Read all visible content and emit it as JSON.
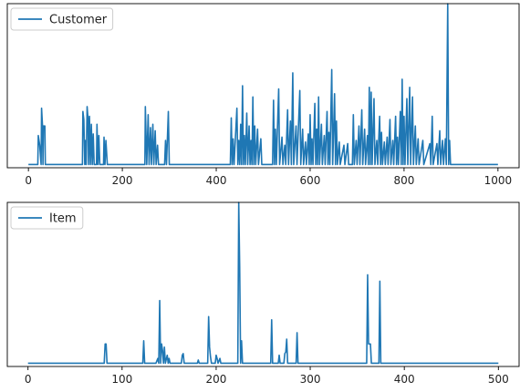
{
  "chart_data": [
    {
      "type": "line",
      "title": "",
      "xlabel": "",
      "ylabel": "",
      "xlim": [
        -45,
        1045
      ],
      "ylim": [
        -2,
        100
      ],
      "x_ticks": [
        0,
        200,
        400,
        600,
        800,
        1000
      ],
      "x_tick_labels": [
        "0",
        "200",
        "400",
        "600",
        "800",
        "1000"
      ],
      "y_ticks_visible": false,
      "grid": false,
      "legend": {
        "placement": "top-left",
        "entries": [
          "Customer"
        ]
      },
      "series": [
        {
          "name": "Customer",
          "color": "#1f77b4",
          "points": [
            [
              0,
              0
            ],
            [
              20,
              0
            ],
            [
              21,
              18
            ],
            [
              24,
              12
            ],
            [
              27,
              0
            ],
            [
              28,
              35
            ],
            [
              30,
              24
            ],
            [
              31,
              0
            ],
            [
              32,
              24
            ],
            [
              35,
              24
            ],
            [
              36,
              0
            ],
            [
              115,
              0
            ],
            [
              116,
              33
            ],
            [
              118,
              28
            ],
            [
              120,
              0
            ],
            [
              121,
              15
            ],
            [
              123,
              0
            ],
            [
              125,
              36
            ],
            [
              127,
              28
            ],
            [
              128,
              0
            ],
            [
              130,
              30
            ],
            [
              132,
              0
            ],
            [
              134,
              25
            ],
            [
              136,
              0
            ],
            [
              138,
              19
            ],
            [
              140,
              0
            ],
            [
              145,
              0
            ],
            [
              146,
              25
            ],
            [
              148,
              0
            ],
            [
              150,
              18
            ],
            [
              152,
              0
            ],
            [
              160,
              0
            ],
            [
              161,
              17
            ],
            [
              163,
              0
            ],
            [
              165,
              15
            ],
            [
              168,
              0
            ],
            [
              248,
              0
            ],
            [
              249,
              36
            ],
            [
              252,
              0
            ],
            [
              255,
              31
            ],
            [
              257,
              0
            ],
            [
              260,
              23
            ],
            [
              262,
              0
            ],
            [
              265,
              25
            ],
            [
              267,
              0
            ],
            [
              270,
              21
            ],
            [
              272,
              0
            ],
            [
              275,
              12
            ],
            [
              277,
              0
            ],
            [
              290,
              0
            ],
            [
              292,
              15
            ],
            [
              294,
              0
            ],
            [
              298,
              33
            ],
            [
              300,
              0
            ],
            [
              430,
              0
            ],
            [
              432,
              29
            ],
            [
              434,
              0
            ],
            [
              436,
              16
            ],
            [
              438,
              0
            ],
            [
              444,
              35
            ],
            [
              446,
              0
            ],
            [
              448,
              15
            ],
            [
              450,
              0
            ],
            [
              452,
              25
            ],
            [
              454,
              0
            ],
            [
              456,
              49
            ],
            [
              458,
              0
            ],
            [
              460,
              18
            ],
            [
              462,
              0
            ],
            [
              465,
              32
            ],
            [
              467,
              0
            ],
            [
              470,
              24
            ],
            [
              472,
              0
            ],
            [
              474,
              15
            ],
            [
              476,
              0
            ],
            [
              478,
              42
            ],
            [
              480,
              0
            ],
            [
              482,
              24
            ],
            [
              484,
              0
            ],
            [
              488,
              22
            ],
            [
              490,
              0
            ],
            [
              495,
              16
            ],
            [
              497,
              0
            ],
            [
              520,
              0
            ],
            [
              522,
              40
            ],
            [
              524,
              0
            ],
            [
              526,
              22
            ],
            [
              528,
              0
            ],
            [
              533,
              47
            ],
            [
              535,
              0
            ],
            [
              540,
              17
            ],
            [
              542,
              0
            ],
            [
              546,
              12
            ],
            [
              548,
              0
            ],
            [
              552,
              34
            ],
            [
              554,
              0
            ],
            [
              558,
              27
            ],
            [
              560,
              0
            ],
            [
              563,
              57
            ],
            [
              565,
              0
            ],
            [
              570,
              24
            ],
            [
              572,
              0
            ],
            [
              578,
              46
            ],
            [
              580,
              0
            ],
            [
              584,
              22
            ],
            [
              586,
              0
            ],
            [
              590,
              14
            ],
            [
              592,
              0
            ],
            [
              596,
              19
            ],
            [
              598,
              0
            ],
            [
              600,
              31
            ],
            [
              602,
              0
            ],
            [
              604,
              16
            ],
            [
              606,
              0
            ],
            [
              610,
              38
            ],
            [
              612,
              0
            ],
            [
              614,
              22
            ],
            [
              616,
              0
            ],
            [
              618,
              42
            ],
            [
              620,
              0
            ],
            [
              624,
              25
            ],
            [
              626,
              0
            ],
            [
              630,
              18
            ],
            [
              632,
              0
            ],
            [
              636,
              33
            ],
            [
              638,
              0
            ],
            [
              640,
              20
            ],
            [
              642,
              0
            ],
            [
              646,
              59
            ],
            [
              648,
              0
            ],
            [
              652,
              44
            ],
            [
              654,
              0
            ],
            [
              656,
              27
            ],
            [
              658,
              0
            ],
            [
              662,
              14
            ],
            [
              664,
              0
            ],
            [
              672,
              12
            ],
            [
              674,
              0
            ],
            [
              680,
              13
            ],
            [
              682,
              0
            ],
            [
              690,
              0
            ],
            [
              692,
              31
            ],
            [
              694,
              0
            ],
            [
              698,
              15
            ],
            [
              700,
              0
            ],
            [
              704,
              24
            ],
            [
              706,
              0
            ],
            [
              710,
              34
            ],
            [
              712,
              0
            ],
            [
              716,
              22
            ],
            [
              718,
              0
            ],
            [
              722,
              18
            ],
            [
              724,
              0
            ],
            [
              726,
              48
            ],
            [
              728,
              0
            ],
            [
              730,
              45
            ],
            [
              732,
              0
            ],
            [
              736,
              41
            ],
            [
              738,
              0
            ],
            [
              742,
              15
            ],
            [
              744,
              0
            ],
            [
              748,
              30
            ],
            [
              750,
              0
            ],
            [
              752,
              20
            ],
            [
              754,
              0
            ],
            [
              758,
              14
            ],
            [
              760,
              0
            ],
            [
              764,
              17
            ],
            [
              766,
              0
            ],
            [
              770,
              28
            ],
            [
              772,
              0
            ],
            [
              776,
              15
            ],
            [
              778,
              0
            ],
            [
              782,
              30
            ],
            [
              784,
              0
            ],
            [
              786,
              17
            ],
            [
              788,
              0
            ],
            [
              792,
              33
            ],
            [
              794,
              0
            ],
            [
              796,
              53
            ],
            [
              798,
              0
            ],
            [
              800,
              30
            ],
            [
              802,
              0
            ],
            [
              806,
              41
            ],
            [
              808,
              0
            ],
            [
              812,
              48
            ],
            [
              814,
              0
            ],
            [
              818,
              42
            ],
            [
              820,
              0
            ],
            [
              824,
              24
            ],
            [
              826,
              0
            ],
            [
              830,
              16
            ],
            [
              832,
              0
            ],
            [
              840,
              15
            ],
            [
              842,
              0
            ],
            [
              855,
              13
            ],
            [
              857,
              0
            ],
            [
              860,
              30
            ],
            [
              862,
              0
            ],
            [
              870,
              13
            ],
            [
              872,
              0
            ],
            [
              876,
              21
            ],
            [
              878,
              0
            ],
            [
              882,
              15
            ],
            [
              884,
              0
            ],
            [
              888,
              16
            ],
            [
              890,
              0
            ],
            [
              893,
              100
            ],
            [
              895,
              0
            ],
            [
              897,
              15
            ],
            [
              899,
              0
            ],
            [
              1000,
              0
            ]
          ]
        }
      ]
    },
    {
      "type": "line",
      "title": "",
      "xlabel": "",
      "ylabel": "",
      "xlim": [
        -22,
        522
      ],
      "ylim": [
        -2,
        100
      ],
      "x_ticks": [
        0,
        100,
        200,
        300,
        400,
        500
      ],
      "x_tick_labels": [
        "0",
        "100",
        "200",
        "300",
        "400",
        "500"
      ],
      "y_ticks_visible": false,
      "grid": false,
      "legend": {
        "placement": "top-left",
        "entries": [
          "Item"
        ]
      },
      "series": [
        {
          "name": "Item",
          "color": "#1f77b4",
          "points": [
            [
              0,
              0
            ],
            [
              81,
              0
            ],
            [
              82,
              12
            ],
            [
              83,
              12
            ],
            [
              84,
              0
            ],
            [
              117,
              0
            ],
            [
              122,
              0
            ],
            [
              123,
              14
            ],
            [
              124,
              0
            ],
            [
              136,
              0
            ],
            [
              138,
              3
            ],
            [
              139,
              0
            ],
            [
              140,
              39
            ],
            [
              141,
              0
            ],
            [
              142,
              12
            ],
            [
              143,
              8
            ],
            [
              144,
              0
            ],
            [
              145,
              10
            ],
            [
              146,
              0
            ],
            [
              148,
              5
            ],
            [
              149,
              0
            ],
            [
              150,
              3
            ],
            [
              151,
              0
            ],
            [
              163,
              0
            ],
            [
              164,
              5
            ],
            [
              165,
              6
            ],
            [
              166,
              0
            ],
            [
              180,
              0
            ],
            [
              181,
              2
            ],
            [
              182,
              0
            ],
            [
              191,
              0
            ],
            [
              192,
              29
            ],
            [
              193,
              10
            ],
            [
              194,
              4
            ],
            [
              195,
              0
            ],
            [
              199,
              0
            ],
            [
              200,
              5
            ],
            [
              201,
              3
            ],
            [
              202,
              0
            ],
            [
              204,
              3
            ],
            [
              205,
              0
            ],
            [
              223,
              0
            ],
            [
              224,
              100
            ],
            [
              225,
              60
            ],
            [
              226,
              0
            ],
            [
              227,
              14
            ],
            [
              228,
              0
            ],
            [
              258,
              0
            ],
            [
              259,
              27
            ],
            [
              260,
              0
            ],
            [
              266,
              0
            ],
            [
              267,
              5
            ],
            [
              268,
              0
            ],
            [
              272,
              0
            ],
            [
              273,
              6
            ],
            [
              274,
              7
            ],
            [
              275,
              15
            ],
            [
              276,
              0
            ],
            [
              285,
              0
            ],
            [
              286,
              19
            ],
            [
              287,
              0
            ],
            [
              360,
              0
            ],
            [
              361,
              55
            ],
            [
              362,
              12
            ],
            [
              364,
              12
            ],
            [
              365,
              0
            ],
            [
              373,
              0
            ],
            [
              374,
              51
            ],
            [
              375,
              0
            ],
            [
              500,
              0
            ]
          ]
        }
      ]
    }
  ]
}
